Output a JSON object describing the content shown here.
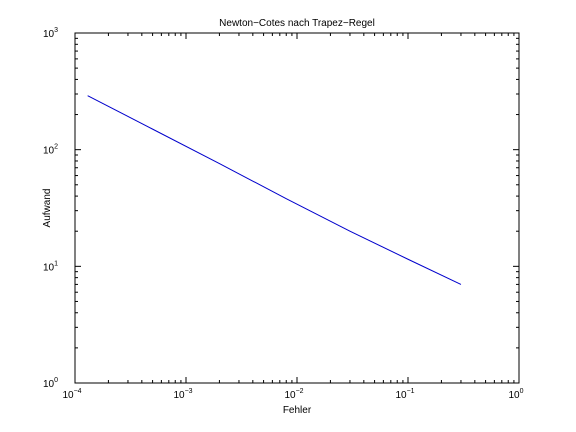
{
  "chart_data": {
    "type": "line",
    "title": "Newton−Cotes nach Trapez−Regel",
    "xlabel": "Fehler",
    "ylabel": "Aufwand",
    "x_scale": "log",
    "y_scale": "log",
    "xlim": [
      0.0001,
      1
    ],
    "ylim": [
      1,
      1000
    ],
    "grid": false,
    "x_ticks": [
      {
        "value": 0.0001,
        "base": "10",
        "exp": "−4"
      },
      {
        "value": 0.001,
        "base": "10",
        "exp": "−3"
      },
      {
        "value": 0.01,
        "base": "10",
        "exp": "−2"
      },
      {
        "value": 0.1,
        "base": "10",
        "exp": "−1"
      },
      {
        "value": 1,
        "base": "10",
        "exp": "0"
      }
    ],
    "y_ticks": [
      {
        "value": 1,
        "base": "10",
        "exp": "0"
      },
      {
        "value": 10,
        "base": "10",
        "exp": "1"
      },
      {
        "value": 100,
        "base": "10",
        "exp": "2"
      },
      {
        "value": 1000,
        "base": "10",
        "exp": "3"
      }
    ],
    "series": [
      {
        "color": "#0000cc",
        "x": [
          0.00013,
          0.0005,
          0.002,
          0.008,
          0.03,
          0.1,
          0.3
        ],
        "y": [
          290,
          150,
          76,
          38,
          20,
          11.5,
          7
        ]
      }
    ]
  }
}
